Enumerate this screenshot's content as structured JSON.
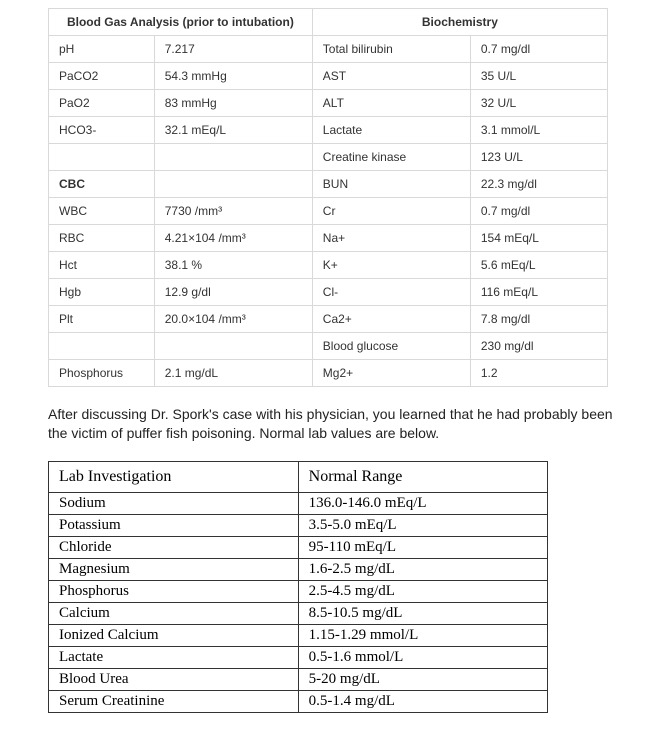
{
  "labTable": {
    "header_left": "Blood Gas Analysis (prior to intubation)",
    "header_right": "Biochemistry",
    "cbc_label": "CBC",
    "rows": [
      {
        "a": "pH",
        "b": "7.217",
        "c": "Total bilirubin",
        "d": "0.7 mg/dl"
      },
      {
        "a": "PaCO2",
        "b": "54.3 mmHg",
        "c": "AST",
        "d": "35 U/L"
      },
      {
        "a": "PaO2",
        "b": "83 mmHg",
        "c": "ALT",
        "d": "32 U/L"
      },
      {
        "a": "HCO3-",
        "b": "32.1 mEq/L",
        "c": "Lactate",
        "d": "3.1 mmol/L"
      },
      {
        "a": "",
        "b": "",
        "c": "Creatine kinase",
        "d": "123 U/L"
      },
      {
        "a": "CBC",
        "b": "",
        "c": "BUN",
        "d": "22.3 mg/dl",
        "sect": true
      },
      {
        "a": "WBC",
        "b": "7730 /mm³",
        "c": "Cr",
        "d": "0.7 mg/dl"
      },
      {
        "a": "RBC",
        "b": "4.21×104 /mm³",
        "c": "Na+",
        "d": "154 mEq/L"
      },
      {
        "a": "Hct",
        "b": "38.1 %",
        "c": "K+",
        "d": "5.6 mEq/L"
      },
      {
        "a": "Hgb",
        "b": "12.9 g/dl",
        "c": "Cl-",
        "d": "116 mEq/L"
      },
      {
        "a": "Plt",
        "b": "20.0×104 /mm³",
        "c": "Ca2+",
        "d": "7.8 mg/dl"
      },
      {
        "a": "",
        "b": "",
        "c": "Blood glucose",
        "d": "230 mg/dl"
      },
      {
        "a": "Phosphorus",
        "b": "2.1 mg/dL",
        "c": "Mg2+",
        "d": "1.2"
      }
    ]
  },
  "narrative": "After discussing Dr. Spork's case with his physician, you learned that he had probably been the victim of puffer fish poisoning. Normal lab values are below.",
  "normTable": {
    "head_left": "Lab Investigation",
    "head_right": "Normal Range",
    "rows": [
      {
        "lab": "Sodium",
        "range": "136.0-146.0 mEq/L"
      },
      {
        "lab": "Potassium",
        "range": "3.5-5.0 mEq/L"
      },
      {
        "lab": "Chloride",
        "range": "95-110 mEq/L"
      },
      {
        "lab": "Magnesium",
        "range": "1.6-2.5 mg/dL"
      },
      {
        "lab": "Phosphorus",
        "range": "2.5-4.5 mg/dL"
      },
      {
        "lab": "Calcium",
        "range": "8.5-10.5 mg/dL"
      },
      {
        "lab": "Ionized Calcium",
        "range": "1.15-1.29 mmol/L"
      },
      {
        "lab": "Lactate",
        "range": "0.5-1.6 mmol/L"
      },
      {
        "lab": "Blood Urea",
        "range": "5-20 mg/dL"
      },
      {
        "lab": "Serum Creatinine",
        "range": "0.5-1.4 mg/dL"
      }
    ]
  }
}
